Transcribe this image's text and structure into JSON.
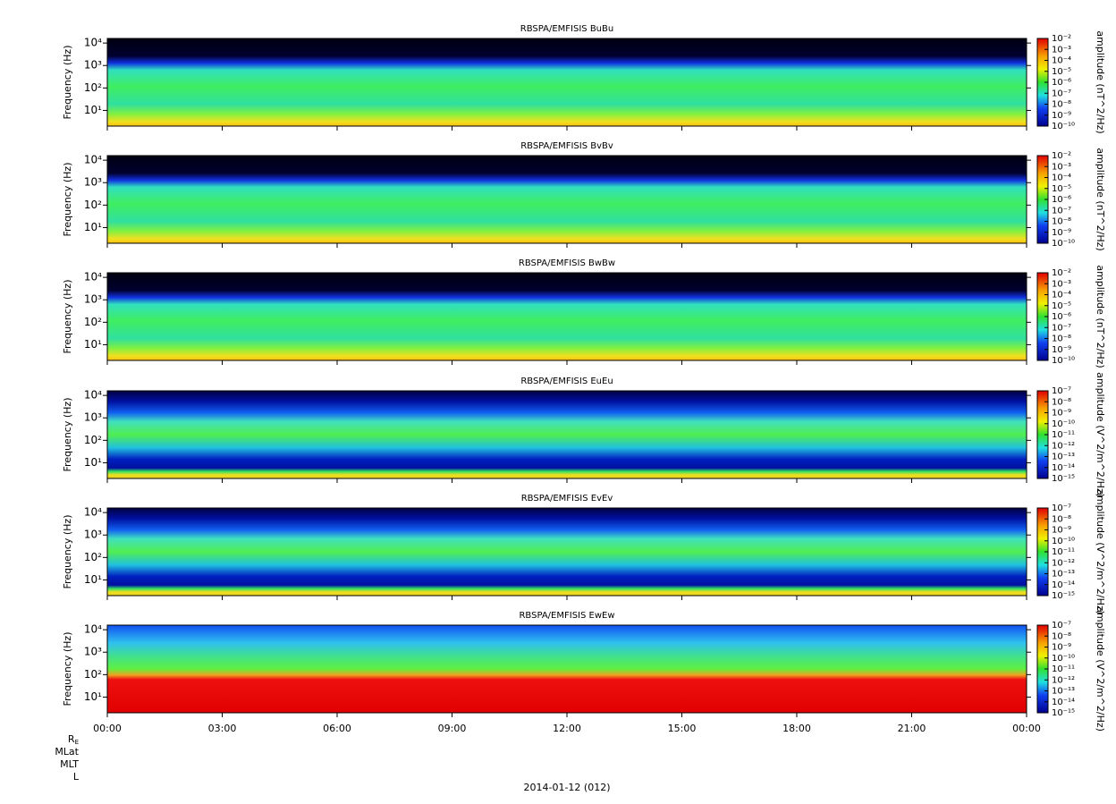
{
  "chart_data": [
    {
      "type": "spectrogram",
      "title": "RBSPA/EMFISIS  BuBu",
      "ylabel": "Frequency (Hz)",
      "ylog": true,
      "ylim": [
        2,
        16000
      ],
      "yticks": [
        {
          "value": 10,
          "label": "10¹"
        },
        {
          "value": 100,
          "label": "10²"
        },
        {
          "value": 1000,
          "label": "10³"
        },
        {
          "value": 10000,
          "label": "10⁴"
        }
      ],
      "zlabel": "amplitude (nT^2/Hz)",
      "zlim": [
        1e-10,
        0.01
      ],
      "zticks": [
        {
          "value": 0.01,
          "label": "10⁻²"
        },
        {
          "value": 0.001,
          "label": "10⁻³"
        },
        {
          "value": 0.0001,
          "label": "10⁻⁴"
        },
        {
          "value": 1e-05,
          "label": "10⁻⁵"
        },
        {
          "value": 1e-06,
          "label": "10⁻⁶"
        },
        {
          "value": 1e-07,
          "label": "10⁻⁷"
        },
        {
          "value": 1e-08,
          "label": "10⁻⁸"
        },
        {
          "value": 1e-09,
          "label": "10⁻⁹"
        },
        {
          "value": 1e-10,
          "label": "10⁻¹⁰"
        }
      ]
    },
    {
      "type": "spectrogram",
      "title": "RBSPA/EMFISIS  BvBv",
      "ylabel": "Frequency (Hz)",
      "ylog": true,
      "ylim": [
        2,
        16000
      ],
      "yticks": [
        {
          "value": 10,
          "label": "10¹"
        },
        {
          "value": 100,
          "label": "10²"
        },
        {
          "value": 1000,
          "label": "10³"
        },
        {
          "value": 10000,
          "label": "10⁴"
        }
      ],
      "zlabel": "amplitude (nT^2/Hz)",
      "zlim": [
        1e-10,
        0.01
      ],
      "zticks": [
        {
          "value": 0.01,
          "label": "10⁻²"
        },
        {
          "value": 0.001,
          "label": "10⁻³"
        },
        {
          "value": 0.0001,
          "label": "10⁻⁴"
        },
        {
          "value": 1e-05,
          "label": "10⁻⁵"
        },
        {
          "value": 1e-06,
          "label": "10⁻⁶"
        },
        {
          "value": 1e-07,
          "label": "10⁻⁷"
        },
        {
          "value": 1e-08,
          "label": "10⁻⁸"
        },
        {
          "value": 1e-09,
          "label": "10⁻⁹"
        },
        {
          "value": 1e-10,
          "label": "10⁻¹⁰"
        }
      ]
    },
    {
      "type": "spectrogram",
      "title": "RBSPA/EMFISIS  BwBw",
      "ylabel": "Frequency (Hz)",
      "ylog": true,
      "ylim": [
        2,
        16000
      ],
      "yticks": [
        {
          "value": 10,
          "label": "10¹"
        },
        {
          "value": 100,
          "label": "10²"
        },
        {
          "value": 1000,
          "label": "10³"
        },
        {
          "value": 10000,
          "label": "10⁴"
        }
      ],
      "zlabel": "amplitude (nT^2/Hz)",
      "zlim": [
        1e-10,
        0.01
      ],
      "zticks": [
        {
          "value": 0.01,
          "label": "10⁻²"
        },
        {
          "value": 0.001,
          "label": "10⁻³"
        },
        {
          "value": 0.0001,
          "label": "10⁻⁴"
        },
        {
          "value": 1e-05,
          "label": "10⁻⁵"
        },
        {
          "value": 1e-06,
          "label": "10⁻⁶"
        },
        {
          "value": 1e-07,
          "label": "10⁻⁷"
        },
        {
          "value": 1e-08,
          "label": "10⁻⁸"
        },
        {
          "value": 1e-09,
          "label": "10⁻⁹"
        },
        {
          "value": 1e-10,
          "label": "10⁻¹⁰"
        }
      ]
    },
    {
      "type": "spectrogram",
      "title": "RBSPA/EMFISIS  EuEu",
      "ylabel": "Frequency (Hz)",
      "ylog": true,
      "ylim": [
        2,
        16000
      ],
      "yticks": [
        {
          "value": 10,
          "label": "10¹"
        },
        {
          "value": 100,
          "label": "10²"
        },
        {
          "value": 1000,
          "label": "10³"
        },
        {
          "value": 10000,
          "label": "10⁴"
        }
      ],
      "zlabel": "amplitude (V^2/m^2/Hz)",
      "zlim": [
        1e-15,
        1e-07
      ],
      "zticks": [
        {
          "value": 1e-07,
          "label": "10⁻⁷"
        },
        {
          "value": 1e-08,
          "label": "10⁻⁸"
        },
        {
          "value": 1e-09,
          "label": "10⁻⁹"
        },
        {
          "value": 1e-10,
          "label": "10⁻¹⁰"
        },
        {
          "value": 1e-11,
          "label": "10⁻¹¹"
        },
        {
          "value": 1e-12,
          "label": "10⁻¹²"
        },
        {
          "value": 1e-13,
          "label": "10⁻¹³"
        },
        {
          "value": 1e-14,
          "label": "10⁻¹⁴"
        },
        {
          "value": 1e-15,
          "label": "10⁻¹⁵"
        }
      ]
    },
    {
      "type": "spectrogram",
      "title": "RBSPA/EMFISIS  EvEv",
      "ylabel": "Frequency (Hz)",
      "ylog": true,
      "ylim": [
        2,
        16000
      ],
      "yticks": [
        {
          "value": 10,
          "label": "10¹"
        },
        {
          "value": 100,
          "label": "10²"
        },
        {
          "value": 1000,
          "label": "10³"
        },
        {
          "value": 10000,
          "label": "10⁴"
        }
      ],
      "zlabel": "amplitude (V^2/m^2/Hz)",
      "zlim": [
        1e-15,
        1e-07
      ],
      "zticks": [
        {
          "value": 1e-07,
          "label": "10⁻⁷"
        },
        {
          "value": 1e-08,
          "label": "10⁻⁸"
        },
        {
          "value": 1e-09,
          "label": "10⁻⁹"
        },
        {
          "value": 1e-10,
          "label": "10⁻¹⁰"
        },
        {
          "value": 1e-11,
          "label": "10⁻¹¹"
        },
        {
          "value": 1e-12,
          "label": "10⁻¹²"
        },
        {
          "value": 1e-13,
          "label": "10⁻¹³"
        },
        {
          "value": 1e-14,
          "label": "10⁻¹⁴"
        },
        {
          "value": 1e-15,
          "label": "10⁻¹⁵"
        }
      ]
    },
    {
      "type": "spectrogram",
      "title": "RBSPA/EMFISIS  EwEw",
      "ylabel": "Frequency (Hz)",
      "ylog": true,
      "ylim": [
        2,
        16000
      ],
      "yticks": [
        {
          "value": 10,
          "label": "10¹"
        },
        {
          "value": 100,
          "label": "10²"
        },
        {
          "value": 1000,
          "label": "10³"
        },
        {
          "value": 10000,
          "label": "10⁴"
        }
      ],
      "zlabel": "amplitude (V^2/m^2/Hz)",
      "zlim": [
        1e-15,
        1e-07
      ],
      "zticks": [
        {
          "value": 1e-07,
          "label": "10⁻⁷"
        },
        {
          "value": 1e-08,
          "label": "10⁻⁸"
        },
        {
          "value": 1e-09,
          "label": "10⁻⁹"
        },
        {
          "value": 1e-10,
          "label": "10⁻¹⁰"
        },
        {
          "value": 1e-11,
          "label": "10⁻¹¹"
        },
        {
          "value": 1e-12,
          "label": "10⁻¹²"
        },
        {
          "value": 1e-13,
          "label": "10⁻¹³"
        },
        {
          "value": 1e-14,
          "label": "10⁻¹⁴"
        },
        {
          "value": 1e-15,
          "label": "10⁻¹⁵"
        }
      ],
      "xlim": [
        0,
        24
      ],
      "xticks": [
        {
          "value": 0,
          "label": "00:00"
        },
        {
          "value": 3,
          "label": "03:00"
        },
        {
          "value": 6,
          "label": "06:00"
        },
        {
          "value": 9,
          "label": "09:00"
        },
        {
          "value": 12,
          "label": "12:00"
        },
        {
          "value": 15,
          "label": "15:00"
        },
        {
          "value": 18,
          "label": "18:00"
        },
        {
          "value": 21,
          "label": "21:00"
        },
        {
          "value": 24,
          "label": "00:00"
        }
      ],
      "xlabel": "2014-01-12 (012)",
      "ephemeris_labels": [
        {
          "base": "R",
          "sub": "E"
        },
        "MLat",
        "MLT",
        "L"
      ]
    }
  ]
}
